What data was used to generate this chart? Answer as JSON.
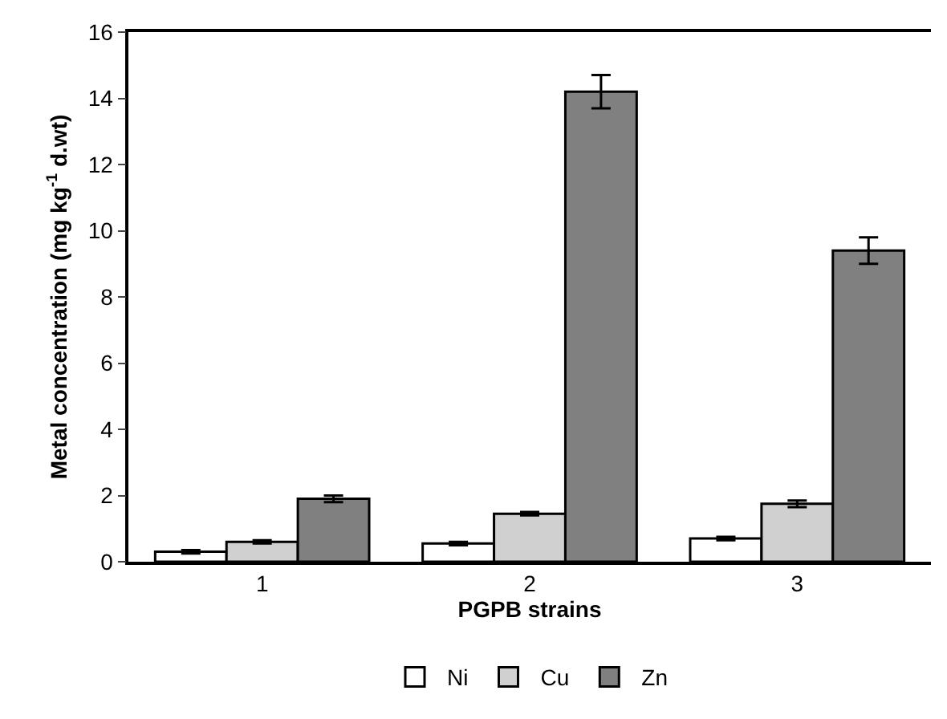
{
  "chart_data": {
    "type": "bar",
    "xlabel": "PGPB strains",
    "ylabel": "Metal concentration (mg kg$^{-1}$ d.wt)",
    "categories": [
      "1",
      "2",
      "3"
    ],
    "series": [
      {
        "name": "Ni",
        "color": "#ffffff",
        "values": [
          0.3,
          0.55,
          0.7
        ],
        "errors": [
          0.05,
          0.05,
          0.05
        ]
      },
      {
        "name": "Cu",
        "color": "#d0d0d0",
        "values": [
          0.6,
          1.45,
          1.75
        ],
        "errors": [
          0.05,
          0.05,
          0.1
        ]
      },
      {
        "name": "Zn",
        "color": "#808080",
        "values": [
          1.9,
          14.2,
          9.4
        ],
        "errors": [
          0.1,
          0.5,
          0.4
        ]
      }
    ],
    "ylim": [
      0,
      16
    ],
    "yticks": [
      0,
      2,
      4,
      6,
      8,
      10,
      12,
      14,
      16
    ],
    "grid": false,
    "legend": "bottom"
  }
}
